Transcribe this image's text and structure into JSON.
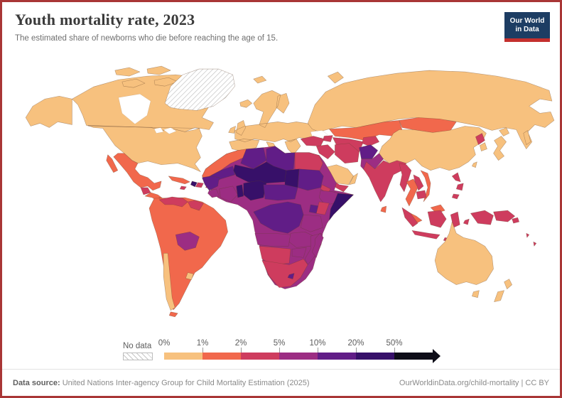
{
  "header": {
    "title": "Youth mortality rate, 2023",
    "subtitle": "The estimated share of newborns who die before reaching the age of 15.",
    "logo": {
      "line1": "Our World",
      "line2": "in Data",
      "bg": "#1d3d63",
      "accent": "#c4302e"
    }
  },
  "legend": {
    "no_data_label": "No data",
    "tick_labels": [
      "0%",
      "1%",
      "2%",
      "5%",
      "10%",
      "20%",
      "50%"
    ],
    "colors": [
      "#f7c17e",
      "#f1684c",
      "#ce3c5e",
      "#9c2d83",
      "#611d87",
      "#371069",
      "#0e0d18"
    ]
  },
  "footer": {
    "source_label": "Data source:",
    "source_text": " United Nations Inter-agency Group for Child Mortality Estimation (2025)",
    "link_text": "OurWorldinData.org/child-mortality | CC BY"
  },
  "frame": {
    "border_color": "#a93636"
  },
  "chart_data": {
    "type": "choropleth_map",
    "title": "Youth mortality rate, 2023",
    "subtitle": "The estimated share of newborns who die before reaching the age of 15.",
    "year": 2023,
    "unit": "%",
    "legend_buckets": [
      "0-1%",
      "1-2%",
      "2-5%",
      "5-10%",
      "10-20%",
      "20-50%",
      "50%+",
      "No data"
    ],
    "regions": {
      "canada": 0,
      "united-states": 0,
      "greenland": "nd",
      "iceland": 0,
      "svalbard": 0,
      "mexico": 1,
      "guatemala": 2,
      "central-america": 1,
      "nicaragua": 2,
      "cuba": 1,
      "jamaica": 2,
      "haiti": 5,
      "dominican-republic": 2,
      "puerto-rico": 2,
      "south-america-main": 1,
      "venezuela": 2,
      "guyanas": 2,
      "bolivia": 3,
      "chile": 0,
      "uruguay": 0,
      "tierra-del-fuego": 1,
      "europe": 0,
      "russia": 0,
      "turkey": 2,
      "caucasus": 2,
      "syria-iraq": 2,
      "iran": 2,
      "saudi-arabia": 0,
      "oman": 0,
      "yemen": 2,
      "kazakhstan": 1,
      "mongolia": 1,
      "uzbekistan-turkmenistan": 2,
      "kyrgyzstan-tajikistan": 2,
      "afghanistan": 4,
      "pakistan": 3,
      "india": 2,
      "sri-lanka": 1,
      "china": 0,
      "north-korea": 2,
      "south-korea": 0,
      "japan": 0,
      "taiwan": 0,
      "myanmar": 2,
      "thailand": 1,
      "laos": 2,
      "cambodia": 2,
      "vietnam": 1,
      "malaysia": 1,
      "indonesia": 2,
      "philippines": 2,
      "papua-new-guinea": 2,
      "pacific-islands": 2,
      "australia": 0,
      "new-zealand": 0,
      "morocco": 1,
      "algeria": 4,
      "libya": 4,
      "egypt": 2,
      "mauritania": 4,
      "mali-niger": 5,
      "chad": 5,
      "sudan": 4,
      "eritrea-djibouti": 2,
      "ethiopia": 3,
      "somalia": 5,
      "senegal-guinea": 4,
      "sierra-leone-liberia": 3,
      "cote-divoire-ghana": 3,
      "togo-benin": 5,
      "nigeria": 5,
      "cameroon-car": 4,
      "uganda": 4,
      "kenya": 2,
      "dr-congo": 4,
      "tanzania": 3,
      "angola": 3,
      "zambia-malawi": 3,
      "zimbabwe": 3,
      "mozambique": 3,
      "namibia-botswana": 2,
      "south-africa": 2,
      "lesotho": 4,
      "madagascar": 3,
      "africa-other": 3
    }
  }
}
